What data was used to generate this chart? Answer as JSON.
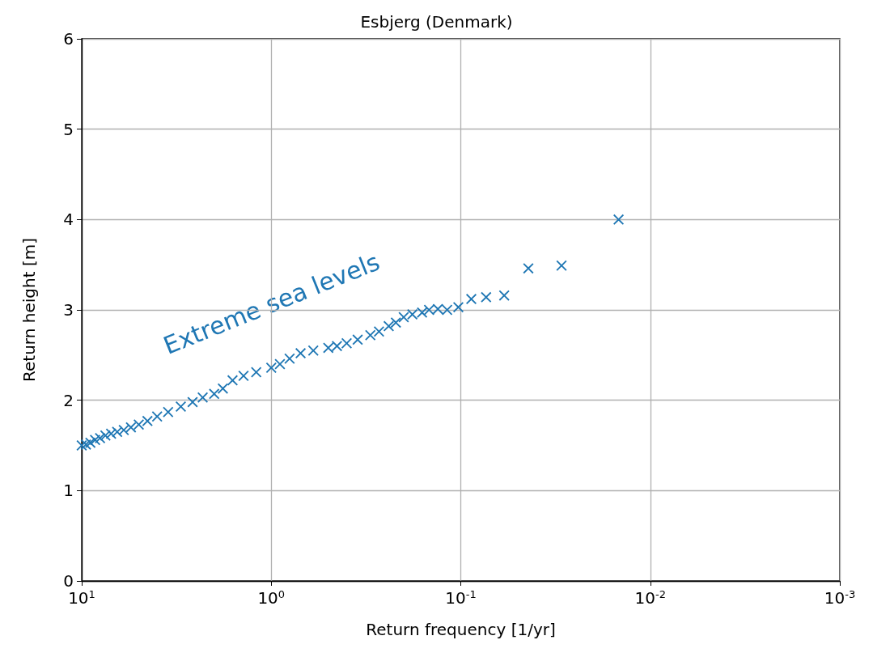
{
  "chart_data": {
    "type": "scatter",
    "title": "Esbjerg (Denmark)",
    "xlabel": "Return frequency [1/yr]",
    "ylabel": "Return height [m]",
    "annotations": [
      "Extreme sea levels"
    ],
    "log": "x",
    "marker": "cross",
    "grid": true,
    "xlim": [
      10,
      0.001
    ],
    "xticks": [
      {
        "value": 10,
        "label": "10$^{1}$"
      },
      {
        "value": 1,
        "label": "10$^{0}$"
      },
      {
        "value": 0.1,
        "label": "10$^{-1}$"
      },
      {
        "value": 0.01,
        "label": "10$^{-2}$"
      },
      {
        "value": 0.001,
        "label": "10$^{-3}$"
      }
    ],
    "ylim": [
      0,
      6
    ],
    "yticks": [
      0,
      1,
      2,
      3,
      4,
      5,
      6
    ],
    "series": [
      {
        "color": "#1f77b4",
        "x": [
          10,
          9.5,
          9,
          8.5,
          8,
          7.5,
          7,
          6.5,
          6,
          5.5,
          5,
          4.5,
          4,
          3.5,
          3,
          2.6,
          2.3,
          2,
          1.8,
          1.6,
          1.4,
          1.2,
          1.0,
          0.9,
          0.8,
          0.7,
          0.6,
          0.5,
          0.45,
          0.4,
          0.35,
          0.3,
          0.27,
          0.24,
          0.22,
          0.2,
          0.18,
          0.16,
          0.147,
          0.132,
          0.118,
          0.103,
          0.088,
          0.0735,
          0.059,
          0.044,
          0.0294,
          0.0147
        ],
        "values": [
          1.5,
          1.51,
          1.53,
          1.56,
          1.58,
          1.61,
          1.63,
          1.65,
          1.67,
          1.7,
          1.73,
          1.77,
          1.82,
          1.87,
          1.93,
          1.98,
          2.03,
          2.07,
          2.13,
          2.22,
          2.27,
          2.31,
          2.36,
          2.4,
          2.46,
          2.52,
          2.55,
          2.58,
          2.6,
          2.63,
          2.67,
          2.72,
          2.76,
          2.82,
          2.86,
          2.92,
          2.95,
          2.97,
          3.0,
          3.01,
          3.0,
          3.03,
          3.12,
          3.14,
          3.16,
          3.46,
          3.49,
          4.0
        ]
      }
    ]
  }
}
